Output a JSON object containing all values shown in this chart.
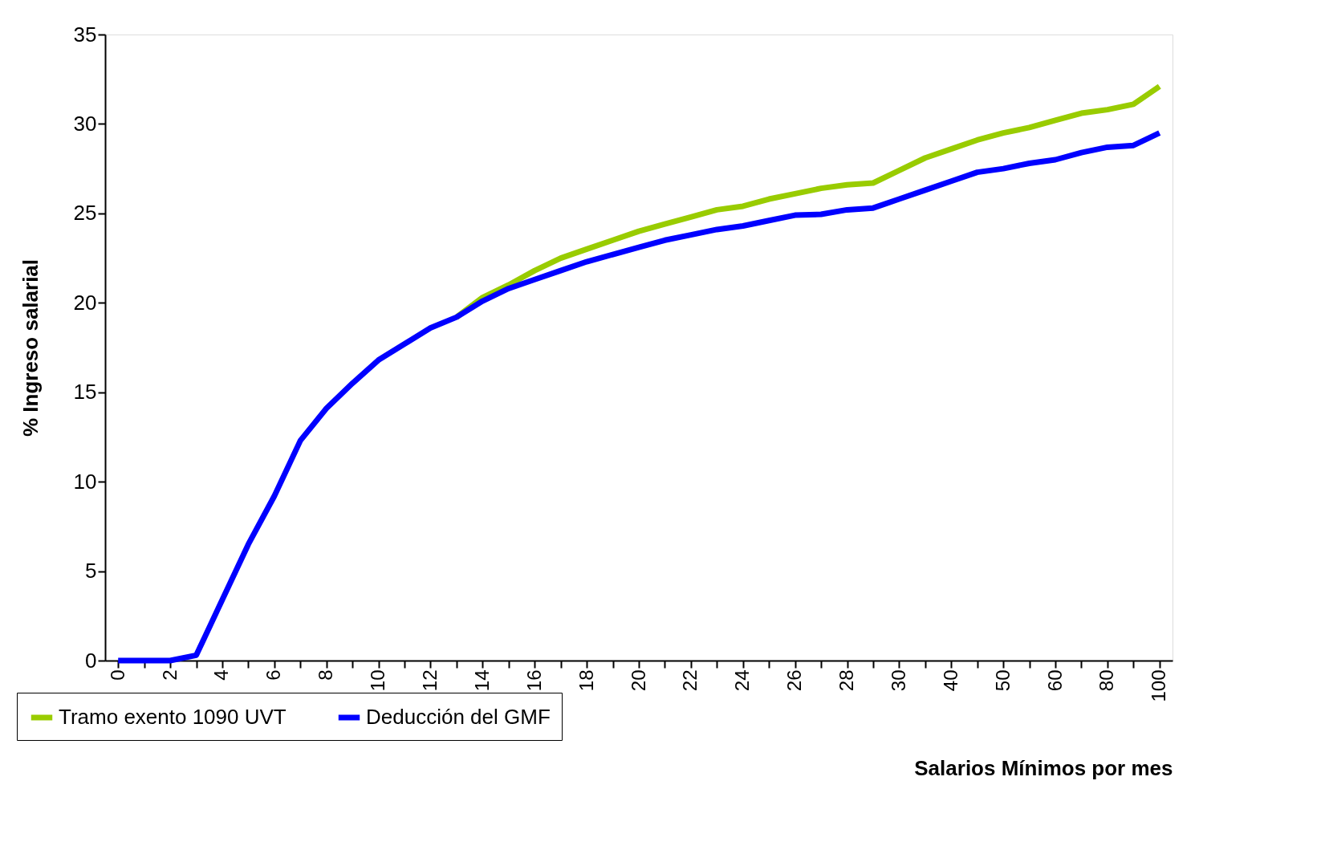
{
  "chart_data": {
    "type": "line",
    "xlabel": "Salarios Mínimos por mes",
    "ylabel": "% Ingreso salarial",
    "categories": [
      "0",
      null,
      "2",
      null,
      "4",
      null,
      "6",
      null,
      "8",
      null,
      "10",
      null,
      "12",
      null,
      "14",
      null,
      "16",
      null,
      "18",
      null,
      "20",
      null,
      "22",
      null,
      "24",
      null,
      "26",
      null,
      "28",
      null,
      "30",
      null,
      "40",
      null,
      "50",
      null,
      "60",
      null,
      "80",
      null,
      "100"
    ],
    "series": [
      {
        "name": "Tramo exento 1090 UVT",
        "color": "#99cc00",
        "values": [
          null,
          null,
          null,
          null,
          null,
          null,
          null,
          null,
          null,
          null,
          null,
          null,
          null,
          19.2,
          20.3,
          21.0,
          21.8,
          22.5,
          23.0,
          23.5,
          24.0,
          24.4,
          24.8,
          25.2,
          25.4,
          25.8,
          26.1,
          26.4,
          26.6,
          26.7,
          27.4,
          28.1,
          28.6,
          29.1,
          29.5,
          29.8,
          30.2,
          30.6,
          30.8,
          31.1,
          32.1
        ]
      },
      {
        "name": "Deducción del GMF",
        "color": "#0000ff",
        "values": [
          0,
          0,
          0,
          0.3,
          3.4,
          6.5,
          9.2,
          12.3,
          14.1,
          15.5,
          16.8,
          17.7,
          18.6,
          19.2,
          20.1,
          20.8,
          21.3,
          21.8,
          22.3,
          22.7,
          23.1,
          23.5,
          23.8,
          24.1,
          24.3,
          24.6,
          24.9,
          24.95,
          25.2,
          25.3,
          25.8,
          26.3,
          26.8,
          27.3,
          27.5,
          27.8,
          28.0,
          28.4,
          28.7,
          28.8,
          29.5
        ]
      }
    ],
    "ylim": [
      0,
      35
    ],
    "yticks": [
      0,
      5,
      10,
      15,
      20,
      25,
      30,
      35
    ],
    "grid": false,
    "legend": "bottom left",
    "marker": "none",
    "line_style": "solid"
  }
}
